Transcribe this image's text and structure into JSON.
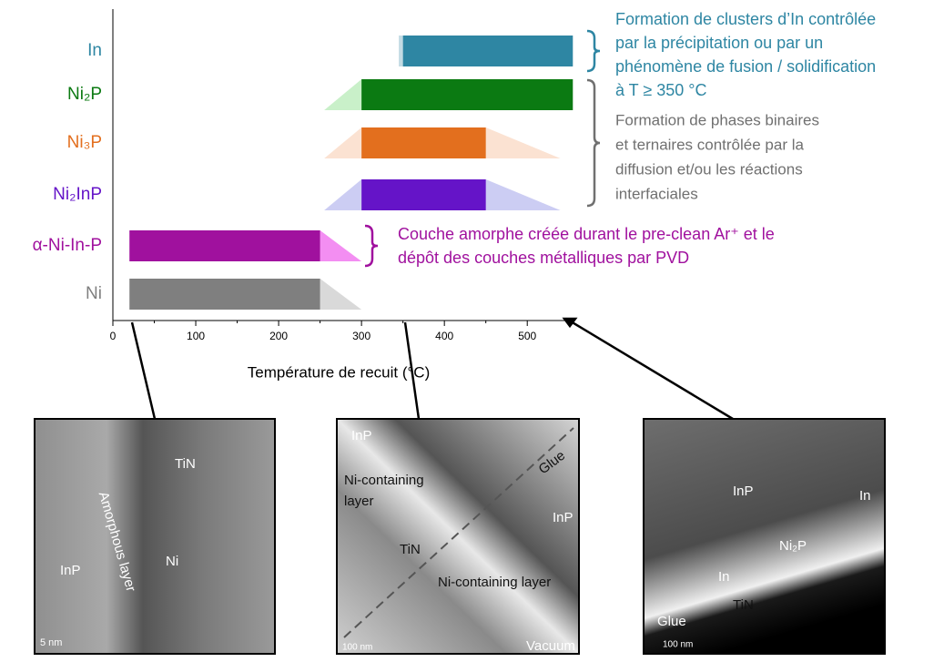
{
  "chart_data": {
    "type": "range-bar",
    "x_label": "Température de recuit (°C)",
    "xlim": [
      0,
      547
    ],
    "xticks": [
      0,
      100,
      200,
      300,
      400,
      500
    ],
    "minor_xticks": [
      50,
      150,
      250,
      350,
      450
    ],
    "bars": [
      {
        "category": "In",
        "color": "#2e86a3",
        "fade_color": "#c3dbe4",
        "start": 350,
        "end": 555,
        "ramp_low": 345,
        "ramp_high": null
      },
      {
        "category": "Ni₂P",
        "color": "#0b7a12",
        "fade_color": "#c9f0c9",
        "start": 300,
        "end": 555,
        "ramp_low": 255,
        "ramp_high": null
      },
      {
        "category": "Ni₃P",
        "color": "#e36f1e",
        "fade_color": "#fbe2d2",
        "start": 300,
        "end": 450,
        "ramp_low": 255,
        "ramp_high": 540
      },
      {
        "category": "Ni₂InP",
        "color": "#6514c8",
        "fade_color": "#cccdf3",
        "start": 300,
        "end": 450,
        "ramp_low": 255,
        "ramp_high": 540
      },
      {
        "category": "α-Ni-In-P",
        "color": "#a0119e",
        "fade_color": "#f38ef2",
        "start": 20,
        "end": 250,
        "ramp_low": null,
        "ramp_high": 300
      },
      {
        "category": "Ni",
        "color": "#7f7f7f",
        "fade_color": "#d9d9d9",
        "start": 20,
        "end": 250,
        "ramp_low": null,
        "ramp_high": 300
      }
    ],
    "annotations": [
      {
        "color": "#2e86a3",
        "lines": [
          "Formation de clusters d’In contrôlée",
          "par la précipitation ou par un",
          "phénomène de fusion / solidification",
          "à T ≥ 350 °C"
        ]
      },
      {
        "color": "#707070",
        "lines": [
          "Formation de phases binaires",
          "et ternaires contrôlée par la",
          "diffusion et/ou les réactions",
          "interfaciales"
        ]
      },
      {
        "color": "#a0119e",
        "lines": [
          "Couche amorphe créée durant le pre-clean Ar⁺ et le",
          "dépôt des couches métalliques par PVD"
        ]
      }
    ]
  },
  "images": [
    {
      "labels": [
        "TiN",
        "Amorphous layer",
        "Ni",
        "InP",
        "5 nm"
      ]
    },
    {
      "labels": [
        "InP",
        "Glue",
        "Ni-containing",
        "layer",
        "InP",
        "TiN",
        "Ni-containing layer",
        "100 nm",
        "Vacuum"
      ]
    },
    {
      "labels": [
        "InP",
        "In",
        "Ni₂P",
        "In",
        "TiN",
        "Glue",
        "100 nm"
      ]
    }
  ]
}
